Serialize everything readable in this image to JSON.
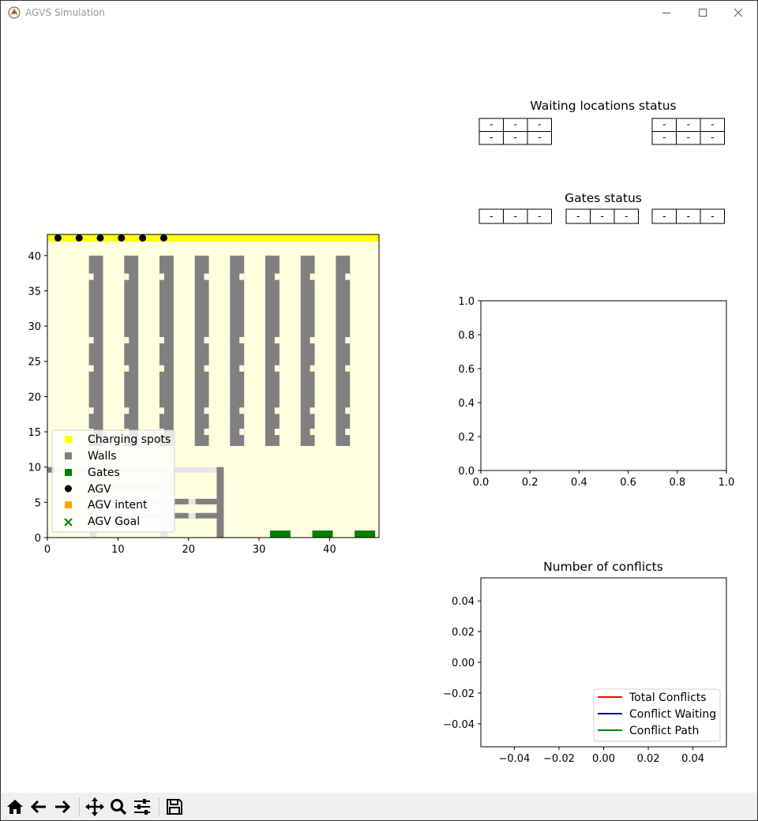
{
  "window": {
    "title": "AGVS Simulation",
    "icons": {
      "app": "agvs-logo-icon",
      "minimize": "minimize-icon",
      "maximize": "maximize-icon",
      "close": "close-icon"
    }
  },
  "colors": {
    "background": "#ffffe0",
    "charging": "#ffff00",
    "walls": "#808080",
    "aisle": "#e6e6e6",
    "gates": "#008000",
    "agv": "#000000",
    "intent": "#ffa500",
    "goal": "#008000",
    "total_conflicts": "#ff0000",
    "conflict_waiting": "#00008b",
    "conflict_path": "#008000"
  },
  "tables": {
    "waiting": {
      "title": "Waiting locations status",
      "groups": [
        [
          [
            "-",
            "-",
            "-"
          ],
          [
            "-",
            "-",
            "-"
          ]
        ],
        [
          [
            "-",
            "-",
            "-"
          ],
          [
            "-",
            "-",
            "-"
          ]
        ]
      ]
    },
    "gates": {
      "title": "Gates status",
      "groups": [
        [
          [
            "-",
            "-",
            "-"
          ]
        ],
        [
          [
            "-",
            "-",
            "-"
          ]
        ],
        [
          [
            "-",
            "-",
            "-"
          ]
        ]
      ]
    }
  },
  "map_legend": [
    "Charging spots",
    "Walls",
    "Gates",
    "AGV",
    "AGV intent",
    "AGV Goal"
  ],
  "chart_data": [
    {
      "type": "scatter",
      "title": "",
      "xlabel": "",
      "ylabel": "",
      "xlim": [
        0,
        47
      ],
      "ylim": [
        0,
        43
      ],
      "x_ticks": [
        "0",
        "10",
        "20",
        "30",
        "40"
      ],
      "y_ticks": [
        "0",
        "5",
        "10",
        "15",
        "20",
        "25",
        "30",
        "35",
        "40"
      ],
      "legend_position": "lower-left",
      "series": [
        {
          "name": "Charging spots",
          "marker": "square",
          "row_y": 42.5,
          "x_range": [
            0,
            47
          ]
        },
        {
          "name": "Walls",
          "marker": "square",
          "shelf_columns_x": [
            6,
            11,
            16,
            21,
            26,
            31,
            36,
            41
          ],
          "shelf_y_range": [
            13,
            40
          ],
          "aisle_gaps_y": [
            37,
            28,
            24,
            18,
            15
          ],
          "lower_block_x_range": [
            0,
            25
          ],
          "lower_block_y_range": [
            0,
            10
          ]
        },
        {
          "name": "Gates",
          "marker": "square",
          "x": [
            33,
            39,
            45
          ],
          "y": [
            0.5,
            0.5,
            0.5
          ]
        },
        {
          "name": "AGV",
          "marker": "circle",
          "x": [
            1.5,
            4.5,
            7.5,
            10.5,
            13.5,
            16.5
          ],
          "y": [
            42.5,
            42.5,
            42.5,
            42.5,
            42.5,
            42.5
          ]
        },
        {
          "name": "AGV intent",
          "marker": "square",
          "x": [],
          "y": []
        },
        {
          "name": "AGV Goal",
          "marker": "x",
          "x": [],
          "y": []
        }
      ]
    },
    {
      "type": "line",
      "title": "",
      "xlabel": "",
      "ylabel": "",
      "xlim": [
        0.0,
        1.0
      ],
      "ylim": [
        0.0,
        1.0
      ],
      "x_ticks": [
        "0.0",
        "0.2",
        "0.4",
        "0.6",
        "0.8",
        "1.0"
      ],
      "y_ticks": [
        "0.0",
        "0.2",
        "0.4",
        "0.6",
        "0.8",
        "1.0"
      ],
      "series": []
    },
    {
      "type": "line",
      "title": "Number of conflicts",
      "xlabel": "",
      "ylabel": "",
      "xlim": [
        -0.055,
        0.055
      ],
      "ylim": [
        -0.055,
        0.055
      ],
      "x_ticks": [
        "−0.04",
        "−0.02",
        "0.00",
        "0.02",
        "0.04"
      ],
      "y_ticks": [
        "−0.04",
        "−0.02",
        "0.00",
        "0.02",
        "0.04"
      ],
      "legend_position": "lower-right",
      "series": [
        {
          "name": "Total Conflicts",
          "x": [],
          "y": []
        },
        {
          "name": "Conflict Waiting",
          "x": [],
          "y": []
        },
        {
          "name": "Conflict Path",
          "x": [],
          "y": []
        }
      ]
    }
  ],
  "toolbar": {
    "buttons": [
      {
        "name": "home-button",
        "icon": "home-icon"
      },
      {
        "name": "back-button",
        "icon": "arrow-left-icon"
      },
      {
        "name": "forward-button",
        "icon": "arrow-right-icon"
      },
      {
        "name": "pan-button",
        "icon": "move-icon"
      },
      {
        "name": "zoom-button",
        "icon": "magnifier-icon"
      },
      {
        "name": "configure-button",
        "icon": "sliders-icon"
      },
      {
        "name": "save-button",
        "icon": "floppy-disk-icon"
      }
    ]
  }
}
